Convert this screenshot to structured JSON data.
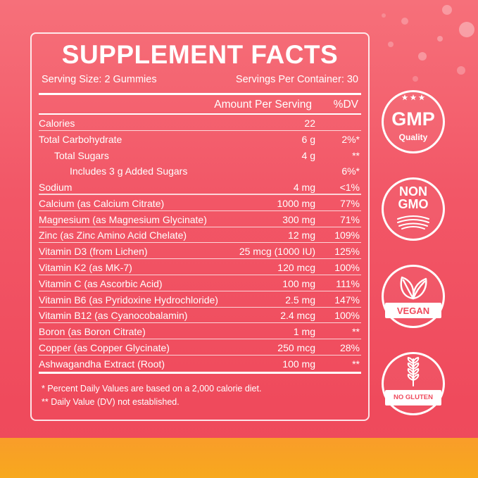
{
  "panel": {
    "title": "SUPPLEMENT FACTS",
    "serving_size": "Serving Size: 2 Gummies",
    "servings_per_container": "Servings Per Container: 30",
    "col_amount": "Amount Per Serving",
    "col_dv": "%DV",
    "rows": [
      {
        "label": "Calories",
        "amount": "22",
        "dv": ""
      },
      {
        "label": "Total Carbohydrate",
        "amount": "6 g",
        "dv": "2%*"
      },
      {
        "label": "Total Sugars",
        "amount": "4 g",
        "dv": "**"
      },
      {
        "label": "Includes 3 g Added Sugars",
        "amount": "",
        "dv": "6%*"
      },
      {
        "label": "Sodium",
        "amount": "4 mg",
        "dv": "<1%"
      },
      {
        "label": "Calcium (as Calcium Citrate)",
        "amount": "1000 mg",
        "dv": "77%"
      },
      {
        "label": "Magnesium (as Magnesium Glycinate)",
        "amount": "300 mg",
        "dv": "71%"
      },
      {
        "label": "Zinc (as Zinc Amino Acid Chelate)",
        "amount": "12 mg",
        "dv": "109%"
      },
      {
        "label": "Vitamin D3 (from Lichen)",
        "amount": "25 mcg (1000 IU)",
        "dv": "125%"
      },
      {
        "label": "Vitamin K2 (as MK-7)",
        "amount": "120 mcg",
        "dv": "100%"
      },
      {
        "label": "Vitamin C (as Ascorbic Acid)",
        "amount": "100 mg",
        "dv": "111%"
      },
      {
        "label": "Vitamin B6 (as Pyridoxine Hydrochloride)",
        "amount": "2.5 mg",
        "dv": "147%"
      },
      {
        "label": "Vitamin B12 (as Cyanocobalamin)",
        "amount": "2.4 mcg",
        "dv": "100%"
      },
      {
        "label": "Boron (as Boron Citrate)",
        "amount": "1 mg",
        "dv": "**"
      },
      {
        "label": "Copper (as Copper Glycinate)",
        "amount": "250 mcg",
        "dv": "28%"
      },
      {
        "label": "Ashwagandha Extract (Root)",
        "amount": "100 mg",
        "dv": "**"
      }
    ],
    "footnote1": "* Percent Daily Values are based on a 2,000 calorie diet.",
    "footnote2": "** Daily Value (DV) not established."
  },
  "badges": {
    "gmp": {
      "main": "GMP",
      "sub": "Quality",
      "icon": "stars-icon"
    },
    "non_gmo": {
      "line1": "NON",
      "line2": "GMO",
      "icon": "field-icon"
    },
    "vegan": {
      "label": "VEGAN",
      "icon": "leaf-icon"
    },
    "no_gluten": {
      "label": "NO GLUTEN",
      "icon": "wheat-icon"
    }
  },
  "colors": {
    "background": "#f25767",
    "bottom_band": "#f7a81d",
    "text": "#ffffff"
  }
}
